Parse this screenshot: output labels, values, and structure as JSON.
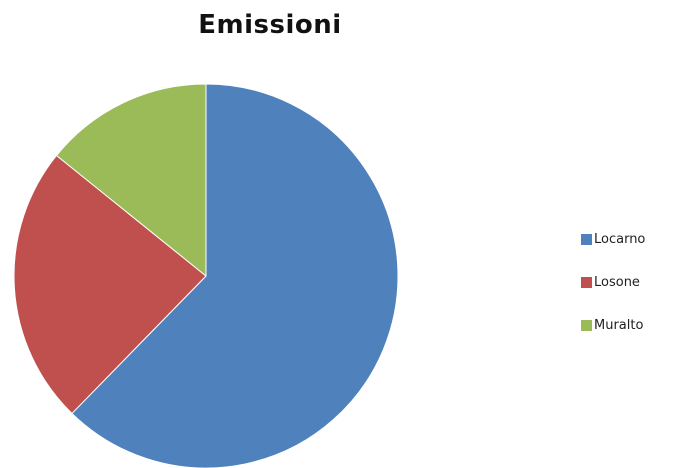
{
  "chart_data": {
    "type": "pie",
    "title": "Emissioni",
    "legend_position": "right",
    "categories": [
      "Locarno",
      "Losone",
      "Muralto"
    ],
    "values": [
      62.3,
      23.5,
      14.2
    ],
    "colors": [
      "#4F81BD",
      "#C0504D",
      "#9BBB59"
    ],
    "start_direction": "12 o'clock",
    "rotation": "clockwise"
  }
}
